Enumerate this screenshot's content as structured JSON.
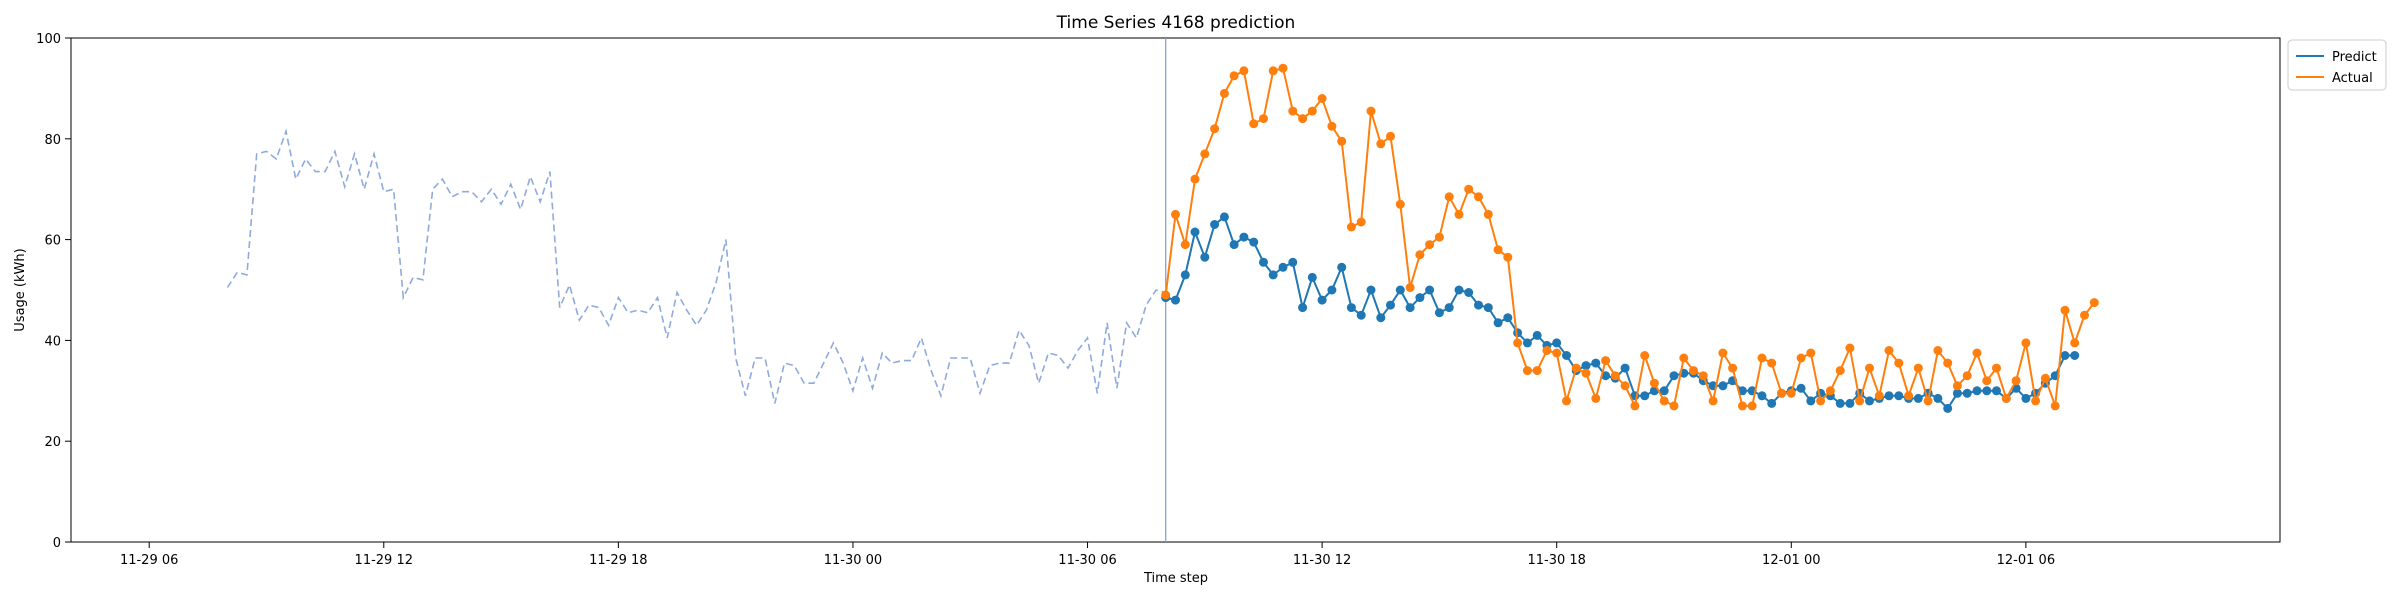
{
  "chart_data": {
    "type": "line",
    "title": "Time Series 4168 prediction",
    "xlabel": "Time step",
    "ylabel": "Usage (kWh)",
    "ylim": [
      0,
      100
    ],
    "yticks": [
      0,
      20,
      40,
      60,
      80,
      100
    ],
    "xlim": [
      -2.0,
      54.5
    ],
    "xticks": [
      {
        "value": 0,
        "label": "11-29 06"
      },
      {
        "value": 6,
        "label": "11-29 12"
      },
      {
        "value": 12,
        "label": "11-29 18"
      },
      {
        "value": 18,
        "label": "11-30 00"
      },
      {
        "value": 24,
        "label": "11-30 06"
      },
      {
        "value": 30,
        "label": "11-30 12"
      },
      {
        "value": 36,
        "label": "11-30 18"
      },
      {
        "value": 42,
        "label": "12-01 00"
      },
      {
        "value": 48,
        "label": "12-01 06"
      }
    ],
    "forecast_start": 26.0,
    "grid": false,
    "legend_position": "outside top-right",
    "x_step": 0.25,
    "history": {
      "x_start": 2.0,
      "color": "#8faadc",
      "values": [
        50.5,
        53.5,
        53,
        77,
        77.5,
        76,
        81.5,
        72,
        76,
        73.5,
        73.5,
        77.5,
        70.5,
        77,
        70,
        77,
        69.5,
        70,
        48.5,
        52.5,
        52,
        70,
        72,
        68.5,
        69.5,
        69.5,
        67.5,
        70,
        67,
        71,
        66,
        72.5,
        67.5,
        73.5,
        46.5,
        51,
        44,
        47,
        46.5,
        43,
        48.5,
        45.5,
        46,
        45.5,
        48.5,
        40.5,
        49.5,
        46,
        43,
        46,
        51.5,
        60,
        36.5,
        29,
        36.5,
        36.5,
        27.5,
        35.5,
        35,
        31.5,
        31.5,
        35.5,
        39.5,
        35.5,
        30,
        36.5,
        30.5,
        37.5,
        35.5,
        36,
        36,
        40.5,
        34,
        29,
        36.5,
        36.5,
        36.5,
        29.5,
        35,
        35.5,
        35.5,
        42,
        39,
        31.5,
        37.5,
        37,
        34.5,
        38,
        40.5,
        29.5,
        43.5,
        30.5,
        43.5,
        40.5,
        47,
        50,
        49.5
      ]
    },
    "series": [
      {
        "name": "Predict",
        "color": "#1f77b4",
        "x_start": 26.0,
        "values": [
          48.5,
          48,
          53,
          61.5,
          56.5,
          63,
          64.5,
          59,
          60.5,
          59.5,
          55.5,
          53,
          54.5,
          55.5,
          46.5,
          52.5,
          48,
          50,
          54.5,
          46.5,
          45,
          50,
          44.5,
          47,
          50,
          46.5,
          48.5,
          50,
          45.5,
          46.5,
          50,
          49.5,
          47,
          46.5,
          43.5,
          44.5,
          41.5,
          39.5,
          41,
          39,
          39.5,
          37,
          34,
          35,
          35.5,
          33,
          32.5,
          34.5,
          29,
          29,
          30,
          30,
          33,
          33.5,
          33.5,
          32,
          31,
          31,
          32,
          30,
          30,
          29,
          27.5,
          29.5,
          30,
          30.5,
          28,
          29.5,
          29,
          27.5,
          27.5,
          29.5,
          28,
          28.5,
          29,
          29,
          28.5,
          28.5,
          29.5,
          28.5,
          26.5,
          29.5,
          29.5,
          30,
          30,
          30,
          28.5,
          30.5,
          28.5,
          29.5,
          31.5,
          33,
          37,
          37
        ]
      },
      {
        "name": "Actual",
        "color": "#ff7f0e",
        "x_start": 26.0,
        "values": [
          49,
          65,
          59,
          72,
          77,
          82,
          89,
          92.5,
          93.5,
          83,
          84,
          93.5,
          94,
          85.5,
          84,
          85.5,
          88,
          82.5,
          79.5,
          62.5,
          63.5,
          85.5,
          79,
          80.5,
          67,
          50.5,
          57,
          59,
          60.5,
          68.5,
          65,
          70,
          68.5,
          65,
          58,
          56.5,
          39.5,
          34,
          34,
          38,
          37.5,
          28,
          34.5,
          33.5,
          28.5,
          36,
          33,
          31,
          27,
          37,
          31.5,
          28,
          27,
          36.5,
          34,
          33,
          28,
          37.5,
          34.5,
          27,
          27,
          36.5,
          35.5,
          29.5,
          29.5,
          36.5,
          37.5,
          28,
          30,
          34,
          38.5,
          28,
          34.5,
          29,
          38,
          35.5,
          29,
          34.5,
          28,
          38,
          35.5,
          31,
          33,
          37.5,
          32,
          34.5,
          28.5,
          32,
          39.5,
          28,
          32.5,
          27,
          46,
          39.5,
          45,
          47.5
        ]
      }
    ]
  }
}
